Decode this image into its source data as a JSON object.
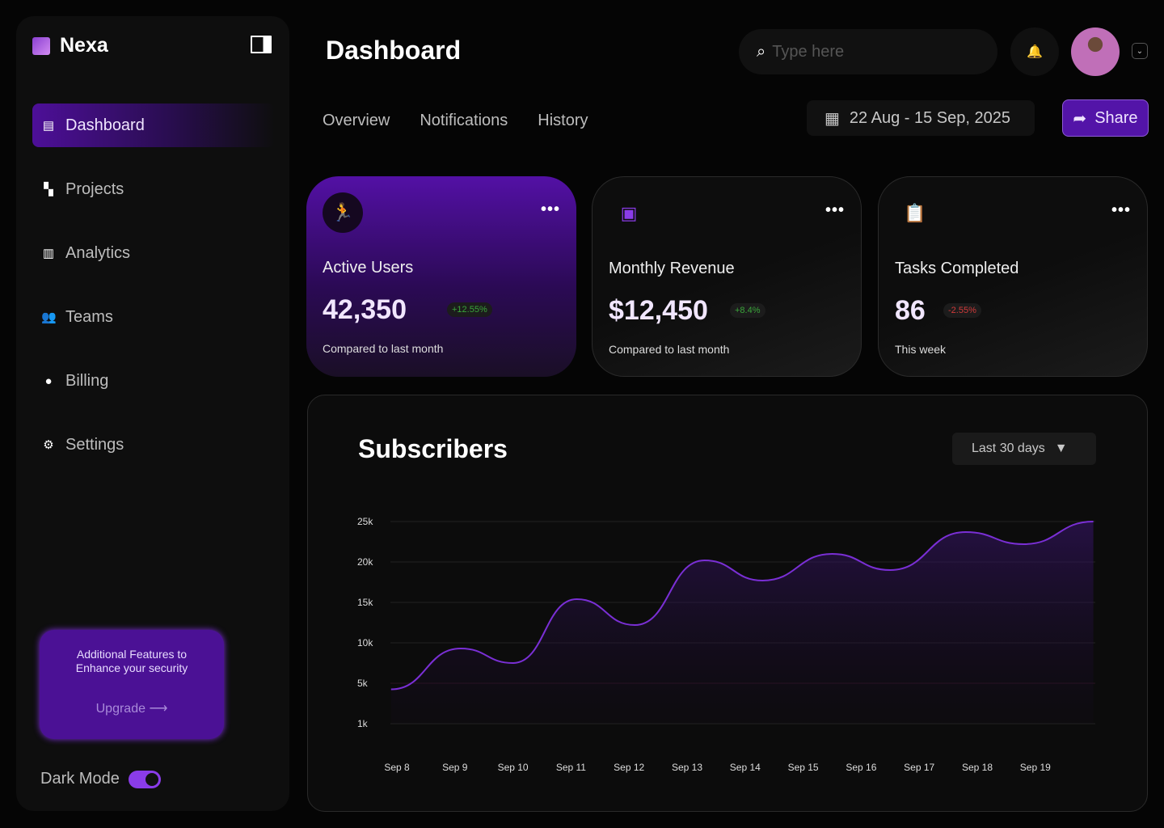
{
  "sidebar": {
    "brand": "Nexa",
    "items": [
      {
        "label": "Dashboard",
        "icon": "id-card-icon",
        "glyph": "▤"
      },
      {
        "label": "Projects",
        "icon": "projects-icon",
        "glyph": "▚"
      },
      {
        "label": "Analytics",
        "icon": "bar-chart-icon",
        "glyph": "▥"
      },
      {
        "label": "Teams",
        "icon": "users-icon",
        "glyph": "👥"
      },
      {
        "label": "Billing",
        "icon": "coins-icon",
        "glyph": "●"
      },
      {
        "label": "Settings",
        "icon": "gear-icon",
        "glyph": "⚙"
      }
    ],
    "promo": {
      "text_line1": "Additional Features to",
      "text_line2": "Enhance your security",
      "button": "Upgrade",
      "arrow": "⟶"
    },
    "dark_mode": {
      "label": "Dark Mode",
      "on": true
    }
  },
  "header": {
    "title": "Dashboard",
    "search_placeholder": "Type here",
    "tabs": [
      "Overview",
      "Notifications",
      "History"
    ],
    "date_range": "22 Aug - 15 Sep, 2025",
    "share_label": "Share"
  },
  "cards": [
    {
      "label": "Active Users",
      "value": "42,350",
      "change": "+12.55%",
      "change_color": "#3aa53a",
      "sub": "Compared to last month",
      "icon": "running-person-icon"
    },
    {
      "label": "Monthly Revenue",
      "value": "$12,450",
      "change": "+8.4%",
      "change_color": "#3aa53a",
      "sub": "Compared to last month",
      "icon": "money-icon"
    },
    {
      "label": "Tasks Completed",
      "value": "86",
      "change": "-2.55%",
      "change_color": "#d23a3a",
      "sub": "This week",
      "icon": "clipboard-check-icon"
    }
  ],
  "chart_panel": {
    "title": "Subscribers",
    "range_label": "Last 30 days"
  },
  "chart_data": {
    "type": "area",
    "title": "Subscribers",
    "xlabel": "",
    "ylabel": "",
    "y_ticks": [
      1000,
      5000,
      10000,
      15000,
      20000,
      25000
    ],
    "y_tick_labels": [
      "1k",
      "5k",
      "10k",
      "15k",
      "20k",
      "25k"
    ],
    "x_ticks": [
      8,
      9,
      10,
      11,
      12,
      13,
      14,
      15,
      16,
      17,
      18,
      19
    ],
    "x_tick_labels": [
      "Sep 8",
      "Sep 9",
      "Sep 10",
      "Sep 11",
      "Sep 12",
      "Sep 13",
      "Sep 14",
      "Sep 15",
      "Sep 16",
      "Sep 17",
      "Sep 18",
      "Sep 19"
    ],
    "series": [
      {
        "name": "Subscribers",
        "color": "#7a2fd5",
        "x": [
          7.9,
          9.1,
          10.0,
          11.1,
          12.1,
          13.3,
          14.3,
          15.5,
          16.5,
          17.8,
          18.8,
          20.0
        ],
        "y": [
          4400,
          9300,
          7500,
          15400,
          12200,
          20200,
          17700,
          21000,
          19000,
          23700,
          22200,
          25000
        ]
      }
    ],
    "grid": true
  }
}
